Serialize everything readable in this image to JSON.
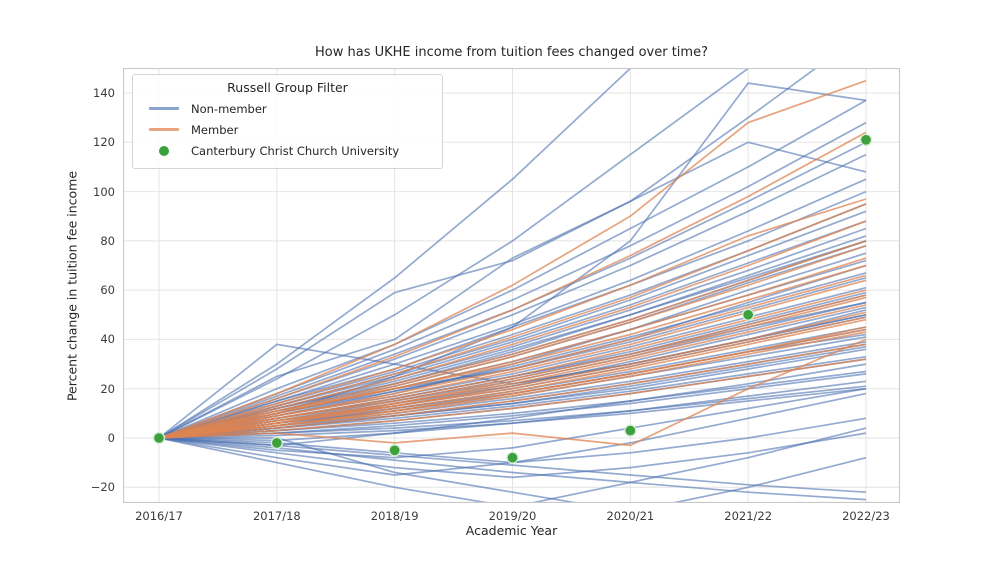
{
  "legend": {
    "title": "Russell Group Filter",
    "items": [
      {
        "label": "Non-member",
        "type": "line",
        "color": "#4C72B0",
        "opacity": 0.65
      },
      {
        "label": "Member",
        "type": "line",
        "color": "#DD8452",
        "opacity": 0.75
      },
      {
        "label": "Canterbury Christ Church University",
        "type": "dot",
        "color": "#3CA03C",
        "opacity": 1
      }
    ]
  },
  "chart_data": {
    "type": "line",
    "title": "How has UKHE income from tuition fees changed over time?",
    "xlabel": "Academic Year",
    "ylabel": "Percent change in tuition fee income",
    "x_categories": [
      "2016/17",
      "2017/18",
      "2018/19",
      "2019/20",
      "2020/21",
      "2021/22",
      "2022/23"
    ],
    "yticks": [
      -20,
      0,
      20,
      40,
      60,
      80,
      100,
      120,
      140
    ],
    "ytick_labels": [
      "−20",
      "0",
      "20",
      "40",
      "60",
      "80",
      "100",
      "120",
      "140"
    ],
    "ylim": [
      -26.4,
      150.2
    ],
    "grid": true,
    "grid_color": "#e4e4e4",
    "spine_color": "#c9c9c9",
    "legend_position": "upper left",
    "highlight_series": {
      "name": "Canterbury Christ Church University",
      "color": "#3CA03C",
      "marker_edge": "#d6edd6",
      "values": [
        0,
        -2,
        -5,
        -8,
        3,
        50,
        121
      ]
    },
    "groups": [
      {
        "name": "Non-member",
        "color": "#4C72B0",
        "opacity": 0.6,
        "lines": [
          [
            0,
            8,
            16,
            25,
            34,
            45,
            55
          ],
          [
            0,
            5,
            12,
            18,
            26,
            35,
            42
          ],
          [
            0,
            12,
            22,
            35,
            50,
            65,
            80
          ],
          [
            0,
            -3,
            2,
            8,
            15,
            22,
            30
          ],
          [
            0,
            10,
            20,
            28,
            40,
            55,
            70
          ],
          [
            0,
            4,
            9,
            14,
            20,
            28,
            36
          ],
          [
            0,
            15,
            28,
            45,
            62,
            80,
            100
          ],
          [
            0,
            7,
            14,
            22,
            30,
            40,
            50
          ],
          [
            0,
            -5,
            -8,
            -4,
            4,
            12,
            20
          ],
          [
            0,
            20,
            38,
            60,
            85,
            110,
            137
          ],
          [
            0,
            9,
            18,
            30,
            44,
            60,
            75
          ],
          [
            0,
            3,
            7,
            12,
            18,
            25,
            32
          ],
          [
            0,
            13,
            26,
            40,
            56,
            74,
            92
          ],
          [
            0,
            6,
            13,
            20,
            29,
            39,
            49
          ],
          [
            0,
            -2,
            -6,
            -10,
            -6,
            0,
            8
          ],
          [
            0,
            11,
            21,
            33,
            47,
            63,
            78
          ],
          [
            0,
            2,
            5,
            9,
            14,
            20,
            26
          ],
          [
            0,
            16,
            32,
            50,
            70,
            92,
            115
          ],
          [
            0,
            8,
            15,
            24,
            34,
            46,
            58
          ],
          [
            0,
            -4,
            -9,
            -14,
            -18,
            -22,
            -25
          ],
          [
            0,
            14,
            27,
            42,
            58,
            76,
            95
          ],
          [
            0,
            5,
            11,
            17,
            25,
            33,
            41
          ],
          [
            0,
            24,
            50,
            80,
            115,
            150,
            185
          ],
          [
            0,
            10,
            19,
            29,
            41,
            54,
            67
          ],
          [
            0,
            1,
            3,
            6,
            10,
            15,
            20
          ],
          [
            0,
            38,
            30,
            22,
            30,
            40,
            52
          ],
          [
            0,
            7,
            15,
            23,
            33,
            44,
            55
          ],
          [
            0,
            -8,
            -15,
            -10,
            -2,
            8,
            18
          ],
          [
            0,
            12,
            24,
            37,
            52,
            68,
            85
          ],
          [
            0,
            4,
            8,
            13,
            19,
            26,
            33
          ],
          [
            0,
            18,
            36,
            56,
            78,
            102,
            128
          ],
          [
            0,
            6,
            12,
            19,
            27,
            36,
            45
          ],
          [
            0,
            -1,
            2,
            6,
            11,
            17,
            23
          ],
          [
            0,
            30,
            65,
            105,
            150,
            195,
            240
          ],
          [
            0,
            9,
            17,
            26,
            37,
            49,
            61
          ],
          [
            0,
            3,
            6,
            10,
            15,
            21,
            27
          ],
          [
            0,
            15,
            30,
            46,
            64,
            84,
            105
          ],
          [
            0,
            7,
            13,
            21,
            30,
            40,
            50
          ],
          [
            0,
            -6,
            -12,
            -16,
            -12,
            -6,
            2
          ],
          [
            0,
            11,
            22,
            34,
            48,
            64,
            80
          ],
          [
            0,
            2,
            4,
            7,
            11,
            16,
            21
          ],
          [
            0,
            13,
            25,
            39,
            54,
            71,
            88
          ],
          [
            0,
            5,
            10,
            16,
            23,
            31,
            39
          ],
          [
            0,
            28,
            59,
            72,
            96,
            130,
            165
          ],
          [
            0,
            8,
            16,
            25,
            35,
            47,
            59
          ],
          [
            0,
            -3,
            -7,
            -11,
            -15,
            -19,
            -22
          ],
          [
            0,
            10,
            20,
            31,
            44,
            58,
            72
          ],
          [
            0,
            4,
            9,
            15,
            22,
            30,
            38
          ],
          [
            0,
            17,
            34,
            52,
            73,
            96,
            120
          ],
          [
            0,
            6,
            11,
            18,
            26,
            35,
            44
          ],
          [
            0,
            0,
            -14,
            -22,
            -30,
            -20,
            -8
          ],
          [
            0,
            12,
            23,
            36,
            50,
            66,
            82
          ],
          [
            0,
            10,
            25,
            45,
            80,
            144,
            137
          ],
          [
            0,
            5,
            9,
            14,
            21,
            29,
            37
          ],
          [
            0,
            -10,
            -20,
            -28,
            -18,
            -8,
            4
          ],
          [
            0,
            25,
            40,
            73,
            96,
            120,
            108
          ],
          [
            0,
            6,
            14,
            21,
            31,
            42,
            53
          ],
          [
            0,
            9,
            19,
            28,
            39,
            52,
            65
          ]
        ]
      },
      {
        "name": "Member",
        "color": "#DD8452",
        "opacity": 0.75,
        "lines": [
          [
            0,
            6,
            13,
            21,
            30,
            40,
            51
          ],
          [
            0,
            8,
            16,
            25,
            36,
            48,
            60
          ],
          [
            0,
            5,
            11,
            18,
            26,
            35,
            44
          ],
          [
            0,
            10,
            20,
            31,
            44,
            58,
            73
          ],
          [
            0,
            7,
            14,
            22,
            32,
            43,
            54
          ],
          [
            0,
            12,
            24,
            38,
            53,
            70,
            88
          ],
          [
            0,
            4,
            9,
            15,
            22,
            30,
            38
          ],
          [
            0,
            9,
            18,
            28,
            40,
            53,
            66
          ],
          [
            0,
            14,
            28,
            44,
            62,
            82,
            97
          ],
          [
            0,
            6,
            12,
            19,
            28,
            38,
            48
          ],
          [
            0,
            11,
            22,
            34,
            48,
            64,
            80
          ],
          [
            0,
            5,
            10,
            17,
            25,
            34,
            43
          ],
          [
            0,
            16,
            33,
            52,
            74,
            98,
            124
          ],
          [
            0,
            8,
            15,
            24,
            34,
            46,
            58
          ],
          [
            0,
            10,
            21,
            33,
            47,
            62,
            78
          ],
          [
            0,
            3,
            7,
            12,
            18,
            25,
            32
          ],
          [
            0,
            13,
            26,
            41,
            57,
            76,
            95
          ],
          [
            0,
            7,
            13,
            20,
            29,
            39,
            49
          ],
          [
            0,
            18,
            38,
            62,
            90,
            128,
            145
          ],
          [
            0,
            5,
            11,
            18,
            26,
            35,
            45
          ],
          [
            0,
            9,
            17,
            27,
            38,
            51,
            64
          ],
          [
            0,
            2,
            -2,
            2,
            -3,
            20,
            40
          ],
          [
            0,
            11,
            20,
            30,
            42,
            56,
            70
          ],
          [
            0,
            6,
            14,
            23,
            33,
            45,
            57
          ]
        ]
      }
    ]
  }
}
